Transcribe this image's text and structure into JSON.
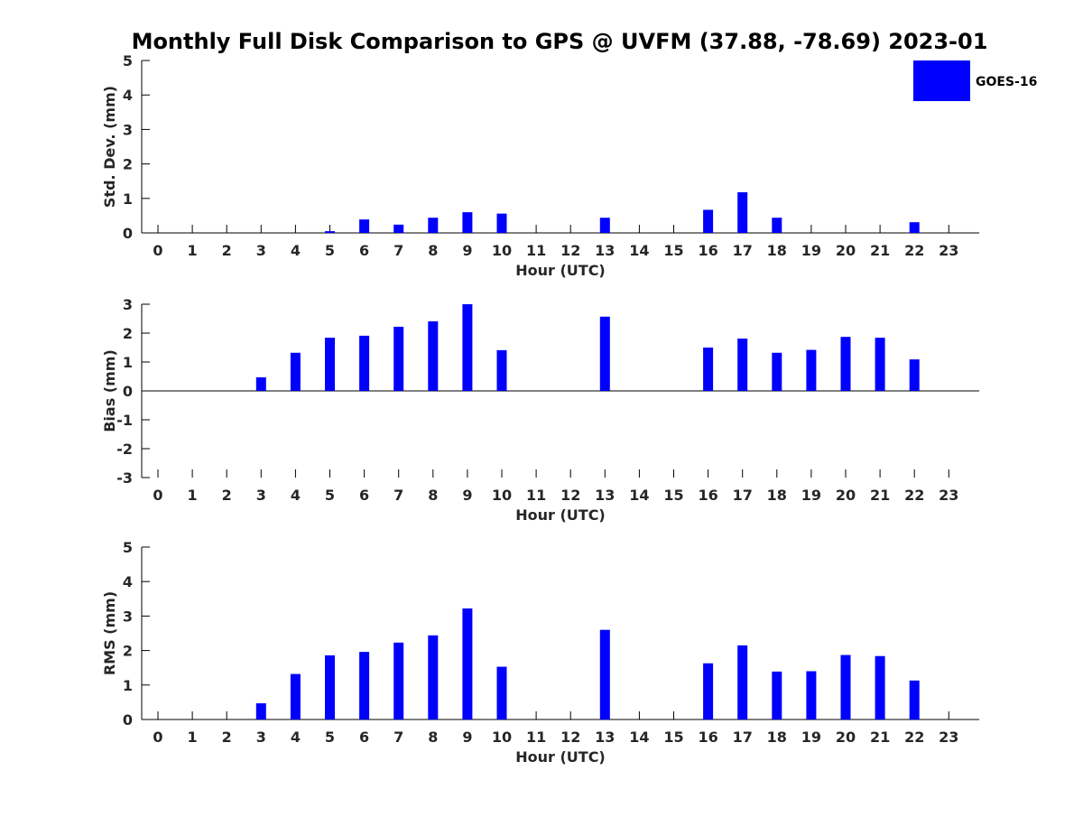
{
  "title": "Monthly Full Disk Comparison to GPS @ UVFM (37.88, -78.69) 2023-01",
  "legend": {
    "label": "GOES-16",
    "color": "#0000ff"
  },
  "chart_data": [
    {
      "type": "bar",
      "categories": [
        "0",
        "1",
        "2",
        "3",
        "4",
        "5",
        "6",
        "7",
        "8",
        "9",
        "10",
        "11",
        "12",
        "13",
        "14",
        "15",
        "16",
        "17",
        "18",
        "19",
        "20",
        "21",
        "22",
        "23"
      ],
      "series": [
        {
          "name": "GOES-16",
          "values": [
            null,
            null,
            null,
            null,
            null,
            0.05,
            0.39,
            0.24,
            0.44,
            0.6,
            0.56,
            null,
            null,
            0.44,
            null,
            null,
            0.67,
            1.18,
            0.44,
            null,
            null,
            null,
            0.31,
            null
          ]
        }
      ],
      "xlabel": "Hour (UTC)",
      "ylabel": "Std. Dev. (mm)",
      "ylim": [
        0,
        5
      ],
      "yticks": [
        "0",
        "1",
        "2",
        "3",
        "4",
        "5"
      ],
      "grid": false
    },
    {
      "type": "bar",
      "categories": [
        "0",
        "1",
        "2",
        "3",
        "4",
        "5",
        "6",
        "7",
        "8",
        "9",
        "10",
        "11",
        "12",
        "13",
        "14",
        "15",
        "16",
        "17",
        "18",
        "19",
        "20",
        "21",
        "22",
        "23"
      ],
      "series": [
        {
          "name": "GOES-16",
          "values": [
            null,
            null,
            null,
            0.47,
            1.32,
            1.84,
            1.91,
            2.22,
            2.41,
            3.0,
            1.41,
            null,
            null,
            2.57,
            null,
            null,
            1.5,
            1.81,
            1.32,
            1.42,
            1.87,
            1.84,
            1.09,
            null
          ]
        }
      ],
      "xlabel": "Hour (UTC)",
      "ylabel": "Bias (mm)",
      "ylim": [
        -3,
        3
      ],
      "yticks": [
        "-3",
        "-2",
        "-1",
        "0",
        "1",
        "2",
        "3"
      ],
      "grid": false
    },
    {
      "type": "bar",
      "categories": [
        "0",
        "1",
        "2",
        "3",
        "4",
        "5",
        "6",
        "7",
        "8",
        "9",
        "10",
        "11",
        "12",
        "13",
        "14",
        "15",
        "16",
        "17",
        "18",
        "19",
        "20",
        "21",
        "22",
        "23"
      ],
      "series": [
        {
          "name": "GOES-16",
          "values": [
            null,
            null,
            null,
            0.47,
            1.32,
            1.86,
            1.96,
            2.23,
            2.44,
            3.22,
            1.53,
            null,
            null,
            2.6,
            null,
            null,
            1.63,
            2.15,
            1.39,
            1.4,
            1.87,
            1.84,
            1.13,
            null
          ]
        }
      ],
      "xlabel": "Hour (UTC)",
      "ylabel": "RMS (mm)",
      "ylim": [
        0,
        5
      ],
      "yticks": [
        "0",
        "1",
        "2",
        "3",
        "4",
        "5"
      ],
      "grid": false
    }
  ]
}
